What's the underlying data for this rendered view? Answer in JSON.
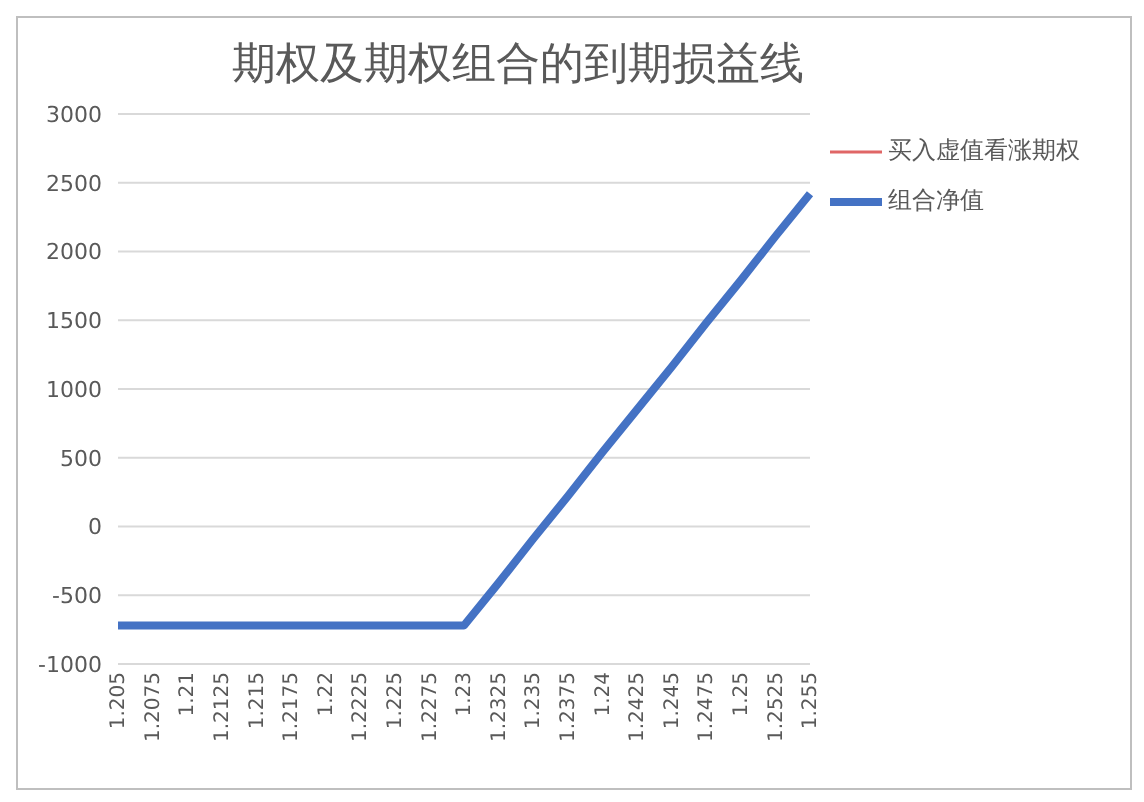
{
  "chart_data": {
    "type": "line",
    "title": "期权及期权组合的到期损益线",
    "categories": [
      "1.205",
      "1.2075",
      "1.21",
      "1.2125",
      "1.215",
      "1.2175",
      "1.22",
      "1.2225",
      "1.225",
      "1.2275",
      "1.23",
      "1.2325",
      "1.235",
      "1.2375",
      "1.24",
      "1.2425",
      "1.245",
      "1.2475",
      "1.25",
      "1.2525",
      "1.255"
    ],
    "series": [
      {
        "name": "买入虚值看涨期权",
        "color": "#e06666",
        "values": [
          null,
          null,
          null,
          null,
          null,
          null,
          null,
          null,
          null,
          null,
          null,
          null,
          null,
          null,
          null,
          null,
          null,
          null,
          null,
          null,
          null
        ]
      },
      {
        "name": "组合净值",
        "color": "#4472c4",
        "values": [
          -720,
          -720,
          -720,
          -720,
          -720,
          -720,
          -720,
          -720,
          -720,
          -720,
          -720,
          -410,
          -90,
          220,
          540,
          850,
          1160,
          1480,
          1790,
          2110,
          2420
        ]
      }
    ],
    "ylim": [
      -1000,
      3000
    ],
    "yticks": [
      -1000,
      -500,
      0,
      500,
      1000,
      1500,
      2000,
      2500,
      3000
    ],
    "grid": "y",
    "legend": "top right",
    "marker": "none",
    "line_style": "solid"
  }
}
